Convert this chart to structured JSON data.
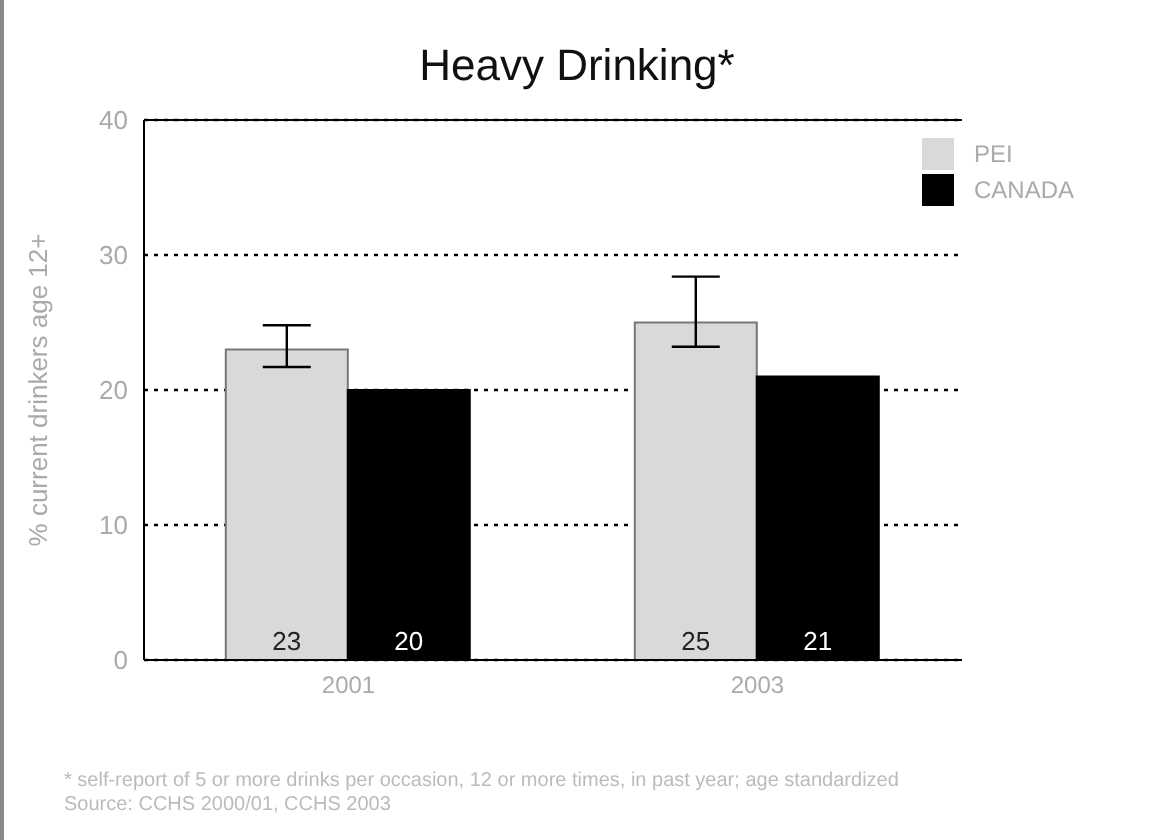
{
  "chart_data": {
    "type": "bar",
    "title": "Heavy Drinking*",
    "ylabel": "% current drinkers age 12+",
    "categories": [
      "2001",
      "2003"
    ],
    "series": [
      {
        "name": "PEI",
        "color": "#d9d9d9",
        "values": [
          23,
          25
        ],
        "errors": [
          [
            21.7,
            24.8
          ],
          [
            23.2,
            28.4
          ]
        ]
      },
      {
        "name": "CANADA",
        "color": "#000000",
        "values": [
          20,
          21
        ]
      }
    ],
    "ylim": [
      0,
      40
    ],
    "yticks": [
      0,
      10,
      20,
      30,
      40
    ],
    "grid": "y",
    "legend": "top right",
    "data_labels": true,
    "annotations": [
      "* self-report of 5 or more drinks per occasion, 12 or more times, in past year; age standardized",
      "Source: CCHS 2000/01, CCHS 2003"
    ]
  }
}
